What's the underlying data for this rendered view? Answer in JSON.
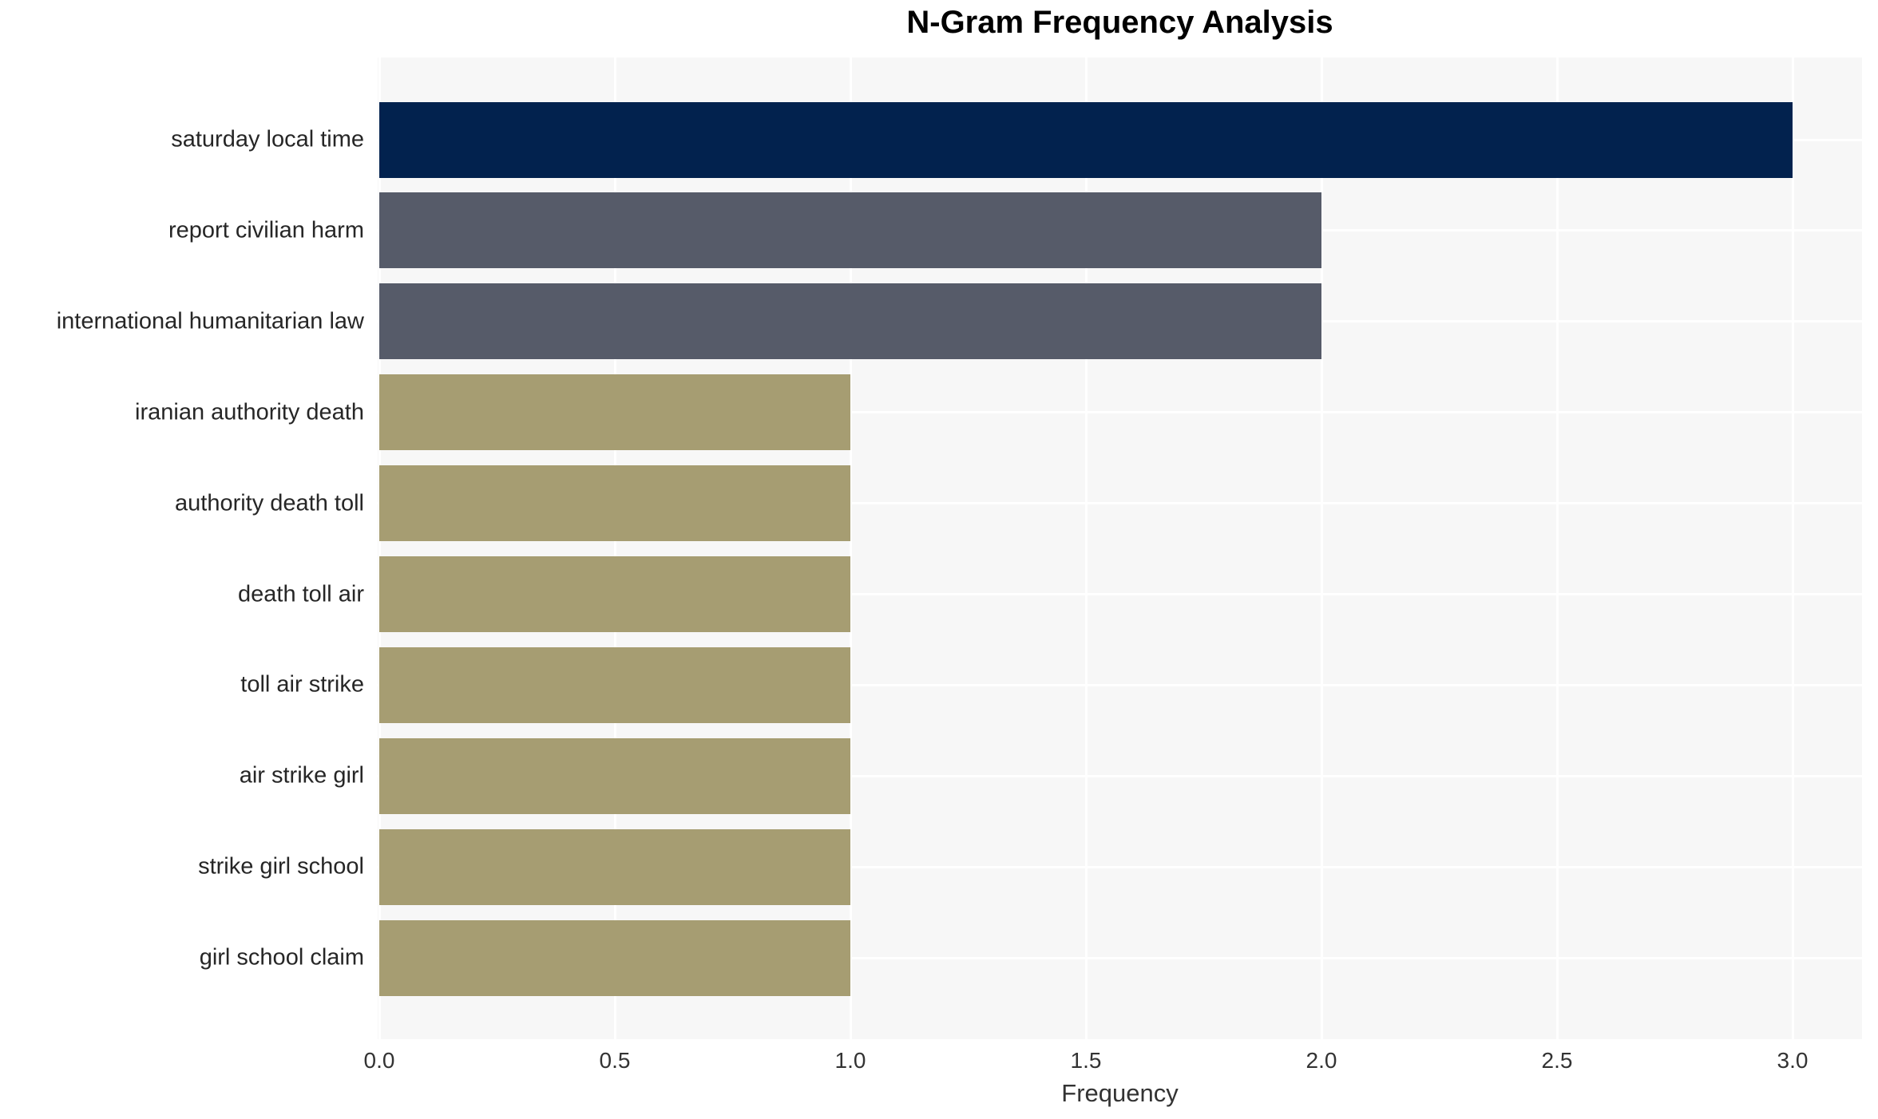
{
  "title": "N-Gram Frequency Analysis",
  "chart_data": {
    "type": "bar",
    "orientation": "horizontal",
    "title": "N-Gram Frequency Analysis",
    "categories": [
      "saturday local time",
      "report civilian harm",
      "international humanitarian law",
      "iranian authority death",
      "authority death toll",
      "death toll air",
      "toll air strike",
      "air strike girl",
      "strike girl school",
      "girl school claim"
    ],
    "values": [
      3,
      2,
      2,
      1,
      1,
      1,
      1,
      1,
      1,
      1
    ],
    "bar_colors": [
      "#02224E",
      "#565B69",
      "#565B69",
      "#A69D72",
      "#A69D72",
      "#A69D72",
      "#A69D72",
      "#A69D72",
      "#A69D72",
      "#A69D72"
    ],
    "xlabel": "Frequency",
    "ylabel": "",
    "xlim": [
      0,
      3.15
    ],
    "xticks": [
      0.0,
      0.5,
      1.0,
      1.5,
      2.0,
      2.5,
      3.0
    ],
    "xtick_labels": [
      "0.0",
      "0.5",
      "1.0",
      "1.5",
      "2.0",
      "2.5",
      "3.0"
    ],
    "grid": true,
    "legend": false,
    "plot_bg_color": "#F7F7F7",
    "grid_color": "#FFFFFF",
    "page_bg_color": "#FFFFFF",
    "label_text_color": "#262626",
    "tick_text_color": "#333333",
    "title_color": "#000000"
  }
}
